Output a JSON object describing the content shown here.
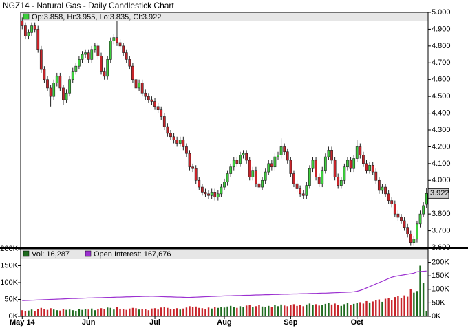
{
  "chart_data": {
    "type": "candlestick",
    "title": "NGZ14 - Natural Gas - Daily Candlestick Chart",
    "ohlc_label": "Op:3.858, Hi:3.955, Lo:3.835, Cl:3.922",
    "price_label": "3.922",
    "up_color": "#3ccf3c",
    "down_color": "#c8242a",
    "categories": [
      "May 14",
      null,
      null,
      null,
      null,
      null,
      null,
      null,
      null,
      null,
      null,
      null,
      null,
      null,
      null,
      null,
      null,
      null,
      null,
      null,
      null,
      "Jun",
      null,
      null,
      null,
      null,
      null,
      null,
      null,
      null,
      null,
      null,
      null,
      null,
      null,
      null,
      null,
      null,
      null,
      null,
      null,
      null,
      "Jul",
      null,
      null,
      null,
      null,
      null,
      null,
      null,
      null,
      null,
      null,
      null,
      null,
      null,
      null,
      null,
      null,
      null,
      null,
      null,
      null,
      null,
      "Aug",
      null,
      null,
      null,
      null,
      null,
      null,
      null,
      null,
      null,
      null,
      null,
      null,
      null,
      null,
      null,
      null,
      null,
      null,
      null,
      null,
      "Sep",
      null,
      null,
      null,
      null,
      null,
      null,
      null,
      null,
      null,
      null,
      null,
      null,
      null,
      null,
      null,
      null,
      null,
      null,
      null,
      null,
      "Oct",
      null,
      null,
      null,
      null,
      null,
      null,
      null,
      null,
      null,
      null,
      null,
      null,
      null,
      null,
      null,
      null,
      null,
      null,
      null,
      null,
      null,
      null
    ],
    "open": [
      4.95,
      4.92,
      4.86,
      4.88,
      4.92,
      4.9,
      4.78,
      4.66,
      4.6,
      4.55,
      4.5,
      4.58,
      4.62,
      4.55,
      4.48,
      4.52,
      4.6,
      4.65,
      4.68,
      4.72,
      4.75,
      4.76,
      4.72,
      4.78,
      4.8,
      4.74,
      4.65,
      4.62,
      4.72,
      4.83,
      4.85,
      4.82,
      4.8,
      4.76,
      4.72,
      4.68,
      4.6,
      4.55,
      4.58,
      4.52,
      4.5,
      4.48,
      4.47,
      4.44,
      4.42,
      4.38,
      4.32,
      4.28,
      4.26,
      4.24,
      4.22,
      4.24,
      4.2,
      4.16,
      4.08,
      4.07,
      4.0,
      3.96,
      3.93,
      3.92,
      3.91,
      3.93,
      3.9,
      3.92,
      3.96,
      3.99,
      4.04,
      4.08,
      4.12,
      4.1,
      4.15,
      4.16,
      4.12,
      4.02,
      4.06,
      3.98,
      3.96,
      4.0,
      4.05,
      4.1,
      4.08,
      4.14,
      4.15,
      4.2,
      4.17,
      4.12,
      4.04,
      3.98,
      3.95,
      3.92,
      3.91,
      3.97,
      4.07,
      4.12,
      4.02,
      3.98,
      4.06,
      4.14,
      4.18,
      4.12,
      4.02,
      3.97,
      4.0,
      4.08,
      4.12,
      4.07,
      4.13,
      4.2,
      4.15,
      4.1,
      4.06,
      4.09,
      4.05,
      4.0,
      3.94,
      3.96,
      3.92,
      3.88,
      3.86,
      3.8,
      3.78,
      3.76,
      3.72,
      3.68,
      3.63,
      3.65,
      3.74,
      3.8,
      3.858
    ],
    "high": [
      4.97,
      4.94,
      4.9,
      4.94,
      4.94,
      4.92,
      4.8,
      4.68,
      4.62,
      4.57,
      4.6,
      4.64,
      4.64,
      4.57,
      4.54,
      4.62,
      4.67,
      4.7,
      4.74,
      4.77,
      4.78,
      4.78,
      4.8,
      4.82,
      4.82,
      4.76,
      4.67,
      4.74,
      4.85,
      4.87,
      4.95,
      4.84,
      4.82,
      4.78,
      4.74,
      4.7,
      4.62,
      4.6,
      4.6,
      4.54,
      4.52,
      4.5,
      4.49,
      4.46,
      4.44,
      4.4,
      4.34,
      4.3,
      4.28,
      4.26,
      4.26,
      4.26,
      4.22,
      4.18,
      4.1,
      4.09,
      4.02,
      3.98,
      3.95,
      3.94,
      3.95,
      3.95,
      3.94,
      3.98,
      4.01,
      4.06,
      4.1,
      4.14,
      4.14,
      4.17,
      4.18,
      4.18,
      4.14,
      4.08,
      4.08,
      4.0,
      4.02,
      4.07,
      4.12,
      4.12,
      4.16,
      4.17,
      4.25,
      4.22,
      4.19,
      4.14,
      4.06,
      4.0,
      3.97,
      3.94,
      3.99,
      4.09,
      4.14,
      4.14,
      4.04,
      4.08,
      4.16,
      4.2,
      4.2,
      4.14,
      4.04,
      4.02,
      4.1,
      4.14,
      4.14,
      4.15,
      4.24,
      4.22,
      4.17,
      4.12,
      4.11,
      4.11,
      4.07,
      4.02,
      3.98,
      3.98,
      3.94,
      3.9,
      3.88,
      3.82,
      3.8,
      3.78,
      3.74,
      3.7,
      3.67,
      3.76,
      3.82,
      3.87,
      3.955
    ],
    "low": [
      4.9,
      4.84,
      4.84,
      4.86,
      4.88,
      4.76,
      4.64,
      4.58,
      4.53,
      4.44,
      4.48,
      4.56,
      4.53,
      4.45,
      4.46,
      4.5,
      4.58,
      4.63,
      4.66,
      4.7,
      4.73,
      4.7,
      4.7,
      4.76,
      4.72,
      4.63,
      4.6,
      4.6,
      4.7,
      4.81,
      4.8,
      4.78,
      4.74,
      4.7,
      4.66,
      4.58,
      4.53,
      4.53,
      4.5,
      4.48,
      4.46,
      4.45,
      4.42,
      4.4,
      4.36,
      4.3,
      4.26,
      4.24,
      4.22,
      4.2,
      4.2,
      4.18,
      4.14,
      4.06,
      4.05,
      3.98,
      3.94,
      3.91,
      3.9,
      3.89,
      3.89,
      3.88,
      3.88,
      3.9,
      3.94,
      3.97,
      4.02,
      4.06,
      4.08,
      4.08,
      4.13,
      4.1,
      4.0,
      4.0,
      3.96,
      3.94,
      3.94,
      3.98,
      4.03,
      4.06,
      4.06,
      4.12,
      4.13,
      4.15,
      4.1,
      4.02,
      3.96,
      3.93,
      3.9,
      3.89,
      3.89,
      3.95,
      4.05,
      4.0,
      3.96,
      3.96,
      4.04,
      4.12,
      4.1,
      4.0,
      3.95,
      3.95,
      3.98,
      4.06,
      4.05,
      4.05,
      4.11,
      4.13,
      4.08,
      4.04,
      4.04,
      4.03,
      3.98,
      3.92,
      3.92,
      3.9,
      3.86,
      3.84,
      3.78,
      3.76,
      3.74,
      3.7,
      3.66,
      3.61,
      3.61,
      3.63,
      3.72,
      3.78,
      3.835
    ],
    "close": [
      4.92,
      4.86,
      4.88,
      4.92,
      4.9,
      4.78,
      4.66,
      4.6,
      4.55,
      4.5,
      4.58,
      4.62,
      4.55,
      4.48,
      4.52,
      4.6,
      4.65,
      4.68,
      4.72,
      4.75,
      4.76,
      4.72,
      4.78,
      4.8,
      4.74,
      4.65,
      4.62,
      4.72,
      4.83,
      4.85,
      4.82,
      4.8,
      4.76,
      4.72,
      4.68,
      4.6,
      4.55,
      4.58,
      4.52,
      4.5,
      4.48,
      4.47,
      4.44,
      4.42,
      4.38,
      4.32,
      4.28,
      4.26,
      4.24,
      4.22,
      4.24,
      4.2,
      4.16,
      4.08,
      4.07,
      4.0,
      3.96,
      3.93,
      3.92,
      3.91,
      3.93,
      3.9,
      3.92,
      3.96,
      3.99,
      4.04,
      4.08,
      4.12,
      4.1,
      4.15,
      4.16,
      4.12,
      4.02,
      4.06,
      3.98,
      3.96,
      4.0,
      4.05,
      4.1,
      4.08,
      4.14,
      4.15,
      4.2,
      4.17,
      4.12,
      4.04,
      3.98,
      3.95,
      3.92,
      3.91,
      3.97,
      4.07,
      4.12,
      4.02,
      3.98,
      4.06,
      4.14,
      4.18,
      4.12,
      4.02,
      3.97,
      4.0,
      4.08,
      4.12,
      4.07,
      4.13,
      4.2,
      4.15,
      4.1,
      4.06,
      4.09,
      4.05,
      4.0,
      3.94,
      3.96,
      3.92,
      3.88,
      3.86,
      3.8,
      3.78,
      3.76,
      3.72,
      3.68,
      3.63,
      3.65,
      3.74,
      3.8,
      3.85,
      3.922
    ],
    "ylim": [
      3.6,
      5.0
    ],
    "yticks": [
      {
        "value": 3.6,
        "label": "3.600"
      },
      {
        "value": 3.7,
        "label": "3.700"
      },
      {
        "value": 3.8,
        "label": "3.800"
      },
      {
        "value": 4.0,
        "label": "4.000"
      },
      {
        "value": 4.1,
        "label": "4.100"
      },
      {
        "value": 4.2,
        "label": "4.200"
      },
      {
        "value": 4.3,
        "label": "4.300"
      },
      {
        "value": 4.4,
        "label": "4.400"
      },
      {
        "value": 4.5,
        "label": "4.500"
      },
      {
        "value": 4.6,
        "label": "4.600"
      },
      {
        "value": 4.7,
        "label": "4.700"
      },
      {
        "value": 4.8,
        "label": "4.800"
      },
      {
        "value": 4.9,
        "label": "4.900"
      },
      {
        "value": 5.0,
        "label": "5.000"
      }
    ],
    "volume": {
      "label": "Vol: 16,287",
      "color": "#1e6b1e",
      "values": [
        18000,
        15000,
        17000,
        20000,
        16000,
        22000,
        25000,
        21000,
        19000,
        24000,
        20000,
        18000,
        17000,
        22000,
        19000,
        20000,
        18000,
        16000,
        21000,
        19000,
        22000,
        20000,
        23000,
        18000,
        21000,
        24000,
        22000,
        26000,
        25000,
        20000,
        28000,
        22000,
        21000,
        19000,
        23000,
        25000,
        24000,
        20000,
        22000,
        21000,
        18000,
        23000,
        24000,
        20000,
        26000,
        28000,
        25000,
        22000,
        21000,
        24000,
        20000,
        23000,
        26000,
        30000,
        27000,
        29000,
        25000,
        24000,
        22000,
        26000,
        23000,
        28000,
        25000,
        27000,
        26000,
        29000,
        31000,
        28000,
        25000,
        30000,
        27000,
        32000,
        34000,
        28000,
        30000,
        33000,
        29000,
        27000,
        31000,
        28000,
        33000,
        30000,
        35000,
        32000,
        30000,
        34000,
        36000,
        31000,
        33000,
        30000,
        35000,
        38000,
        33000,
        36000,
        32000,
        34000,
        37000,
        40000,
        35000,
        38000,
        33000,
        31000,
        36000,
        39000,
        34000,
        37000,
        40000,
        42000,
        38000,
        45000,
        41000,
        44000,
        47000,
        50000,
        43000,
        52000,
        55000,
        48000,
        57000,
        60000,
        55000,
        62000,
        58000,
        80000,
        70000,
        75000,
        150000,
        100000,
        16287
      ],
      "ylim": [
        0,
        200000
      ],
      "yticks": [
        {
          "value": 0,
          "label": "0K"
        },
        {
          "value": 50000,
          "label": "50K"
        },
        {
          "value": 100000,
          "label": "100K"
        },
        {
          "value": 150000,
          "label": "150K"
        },
        {
          "value": 200000,
          "label": "200K"
        }
      ]
    },
    "open_interest": {
      "label": "Open Interest: 167,676",
      "color": "#9b30d0",
      "axis": "y2",
      "values": [
        58000,
        58500,
        59000,
        59500,
        60000,
        60500,
        61000,
        61500,
        62000,
        62500,
        63000,
        63500,
        64000,
        64500,
        65000,
        65500,
        66000,
        66000,
        66500,
        67000,
        67500,
        68000,
        68000,
        68500,
        69000,
        69000,
        69500,
        70000,
        70000,
        70500,
        71000,
        71000,
        71500,
        72000,
        72000,
        72500,
        73000,
        73000,
        73500,
        74000,
        74000,
        74500,
        74000,
        73500,
        73000,
        72500,
        72000,
        72000,
        71500,
        71000,
        71000,
        70500,
        70000,
        70000,
        70500,
        71000,
        71500,
        72000,
        72500,
        73000,
        73500,
        74000,
        74500,
        75000,
        75500,
        76000,
        76000,
        76500,
        77000,
        77000,
        77500,
        78000,
        78000,
        78500,
        79000,
        79000,
        79500,
        80000,
        80000,
        80500,
        81000,
        81000,
        81500,
        82000,
        82000,
        82500,
        83000,
        83000,
        83500,
        84000,
        84000,
        84500,
        85000,
        85000,
        85500,
        86000,
        86000,
        86500,
        87000,
        87500,
        88000,
        88500,
        89000,
        89500,
        90000,
        91000,
        93000,
        96000,
        100000,
        105000,
        110000,
        115000,
        120000,
        125000,
        130000,
        135000,
        140000,
        145000,
        148000,
        150000,
        152000,
        154000,
        156000,
        158000,
        160000,
        165000,
        166000,
        167000,
        167676
      ],
      "y2lim": [
        0,
        250000
      ],
      "y2ticks": [
        {
          "value": 0,
          "label": "0K"
        },
        {
          "value": 50000,
          "label": "50K"
        },
        {
          "value": 100000,
          "label": "100K"
        },
        {
          "value": 150000,
          "label": "150K"
        },
        {
          "value": 200000,
          "label": "200K"
        }
      ]
    }
  }
}
